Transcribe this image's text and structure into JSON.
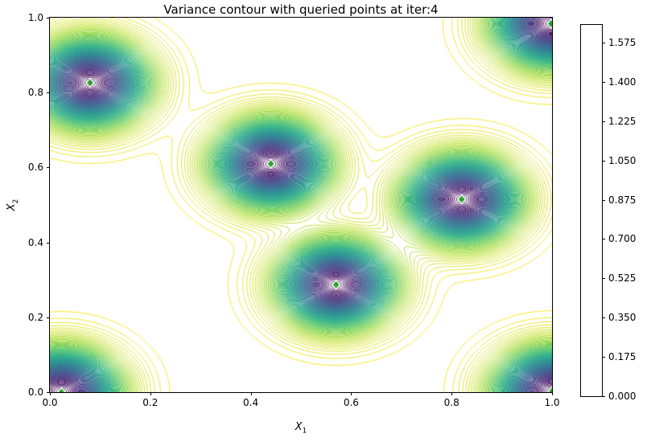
{
  "title": "Variance contour with queried points at iter:4",
  "axes": {
    "xlabel_base": "X",
    "xlabel_sub": "1",
    "ylabel_base": "X",
    "ylabel_sub": "2",
    "xtick_labels": [
      "0.0",
      "0.2",
      "0.4",
      "0.6",
      "0.8",
      "1.0"
    ],
    "ytick_labels": [
      "0.0",
      "0.2",
      "0.4",
      "0.6",
      "0.8",
      "1.0"
    ]
  },
  "colorbar": {
    "tick_labels": [
      "0.000",
      "0.175",
      "0.350",
      "0.525",
      "0.700",
      "0.875",
      "1.050",
      "1.225",
      "1.400",
      "1.575"
    ]
  },
  "chart_data": {
    "type": "contour",
    "title": "Variance contour with queried points at iter:4",
    "xlabel": "X_1",
    "ylabel": "X_2",
    "xlim": [
      0,
      1
    ],
    "ylim": [
      0,
      1
    ],
    "xticks": [
      0.0,
      0.2,
      0.4,
      0.6,
      0.8,
      1.0
    ],
    "yticks": [
      0.0,
      0.2,
      0.4,
      0.6,
      0.8,
      1.0
    ],
    "grid": false,
    "colormap": "viridis",
    "colorbar_ticks": [
      0.0,
      0.175,
      0.35,
      0.525,
      0.7,
      0.875,
      1.05,
      1.225,
      1.4,
      1.575
    ],
    "colorbar_min": 0.0,
    "colorbar_max": 1.654,
    "n_levels": 92,
    "level_min": 0.0,
    "level_step": 0.018,
    "prior_variance": 1.654,
    "lengthscale": 0.1,
    "queried_points": [
      {
        "x": 0.08,
        "y": 0.826
      },
      {
        "x": 0.44,
        "y": 0.61
      },
      {
        "x": 0.82,
        "y": 0.515
      },
      {
        "x": 0.57,
        "y": 0.287
      },
      {
        "x": 0.023,
        "y": 0.0
      },
      {
        "x": 1.0,
        "y": 0.002
      },
      {
        "x": 0.998,
        "y": 0.984
      }
    ],
    "marker": {
      "shape": "diamond",
      "fill": "#2ca02c",
      "edge": "#ffffff"
    }
  }
}
